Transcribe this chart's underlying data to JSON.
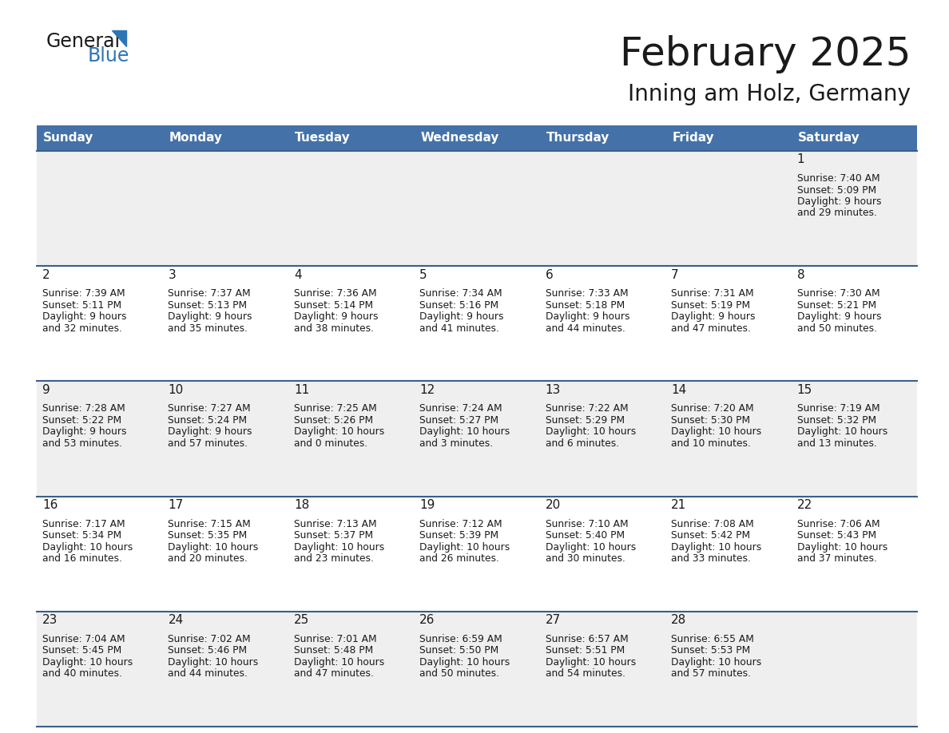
{
  "title": "February 2025",
  "subtitle": "Inning am Holz, Germany",
  "header_bg": "#4472A8",
  "header_text": "#FFFFFF",
  "row_bg_light": "#EFEFEF",
  "row_bg_white": "#FFFFFF",
  "text_color": "#1a1a1a",
  "divider_color": "#3A5F8A",
  "day_names": [
    "Sunday",
    "Monday",
    "Tuesday",
    "Wednesday",
    "Thursday",
    "Friday",
    "Saturday"
  ],
  "calendar": [
    [
      null,
      null,
      null,
      null,
      null,
      null,
      {
        "day": "1",
        "sunrise": "7:40 AM",
        "sunset": "5:09 PM",
        "daylight": "9 hours",
        "daylight2": "and 29 minutes."
      }
    ],
    [
      {
        "day": "2",
        "sunrise": "7:39 AM",
        "sunset": "5:11 PM",
        "daylight": "9 hours",
        "daylight2": "and 32 minutes."
      },
      {
        "day": "3",
        "sunrise": "7:37 AM",
        "sunset": "5:13 PM",
        "daylight": "9 hours",
        "daylight2": "and 35 minutes."
      },
      {
        "day": "4",
        "sunrise": "7:36 AM",
        "sunset": "5:14 PM",
        "daylight": "9 hours",
        "daylight2": "and 38 minutes."
      },
      {
        "day": "5",
        "sunrise": "7:34 AM",
        "sunset": "5:16 PM",
        "daylight": "9 hours",
        "daylight2": "and 41 minutes."
      },
      {
        "day": "6",
        "sunrise": "7:33 AM",
        "sunset": "5:18 PM",
        "daylight": "9 hours",
        "daylight2": "and 44 minutes."
      },
      {
        "day": "7",
        "sunrise": "7:31 AM",
        "sunset": "5:19 PM",
        "daylight": "9 hours",
        "daylight2": "and 47 minutes."
      },
      {
        "day": "8",
        "sunrise": "7:30 AM",
        "sunset": "5:21 PM",
        "daylight": "9 hours",
        "daylight2": "and 50 minutes."
      }
    ],
    [
      {
        "day": "9",
        "sunrise": "7:28 AM",
        "sunset": "5:22 PM",
        "daylight": "9 hours",
        "daylight2": "and 53 minutes."
      },
      {
        "day": "10",
        "sunrise": "7:27 AM",
        "sunset": "5:24 PM",
        "daylight": "9 hours",
        "daylight2": "and 57 minutes."
      },
      {
        "day": "11",
        "sunrise": "7:25 AM",
        "sunset": "5:26 PM",
        "daylight": "10 hours",
        "daylight2": "and 0 minutes."
      },
      {
        "day": "12",
        "sunrise": "7:24 AM",
        "sunset": "5:27 PM",
        "daylight": "10 hours",
        "daylight2": "and 3 minutes."
      },
      {
        "day": "13",
        "sunrise": "7:22 AM",
        "sunset": "5:29 PM",
        "daylight": "10 hours",
        "daylight2": "and 6 minutes."
      },
      {
        "day": "14",
        "sunrise": "7:20 AM",
        "sunset": "5:30 PM",
        "daylight": "10 hours",
        "daylight2": "and 10 minutes."
      },
      {
        "day": "15",
        "sunrise": "7:19 AM",
        "sunset": "5:32 PM",
        "daylight": "10 hours",
        "daylight2": "and 13 minutes."
      }
    ],
    [
      {
        "day": "16",
        "sunrise": "7:17 AM",
        "sunset": "5:34 PM",
        "daylight": "10 hours",
        "daylight2": "and 16 minutes."
      },
      {
        "day": "17",
        "sunrise": "7:15 AM",
        "sunset": "5:35 PM",
        "daylight": "10 hours",
        "daylight2": "and 20 minutes."
      },
      {
        "day": "18",
        "sunrise": "7:13 AM",
        "sunset": "5:37 PM",
        "daylight": "10 hours",
        "daylight2": "and 23 minutes."
      },
      {
        "day": "19",
        "sunrise": "7:12 AM",
        "sunset": "5:39 PM",
        "daylight": "10 hours",
        "daylight2": "and 26 minutes."
      },
      {
        "day": "20",
        "sunrise": "7:10 AM",
        "sunset": "5:40 PM",
        "daylight": "10 hours",
        "daylight2": "and 30 minutes."
      },
      {
        "day": "21",
        "sunrise": "7:08 AM",
        "sunset": "5:42 PM",
        "daylight": "10 hours",
        "daylight2": "and 33 minutes."
      },
      {
        "day": "22",
        "sunrise": "7:06 AM",
        "sunset": "5:43 PM",
        "daylight": "10 hours",
        "daylight2": "and 37 minutes."
      }
    ],
    [
      {
        "day": "23",
        "sunrise": "7:04 AM",
        "sunset": "5:45 PM",
        "daylight": "10 hours",
        "daylight2": "and 40 minutes."
      },
      {
        "day": "24",
        "sunrise": "7:02 AM",
        "sunset": "5:46 PM",
        "daylight": "10 hours",
        "daylight2": "and 44 minutes."
      },
      {
        "day": "25",
        "sunrise": "7:01 AM",
        "sunset": "5:48 PM",
        "daylight": "10 hours",
        "daylight2": "and 47 minutes."
      },
      {
        "day": "26",
        "sunrise": "6:59 AM",
        "sunset": "5:50 PM",
        "daylight": "10 hours",
        "daylight2": "and 50 minutes."
      },
      {
        "day": "27",
        "sunrise": "6:57 AM",
        "sunset": "5:51 PM",
        "daylight": "10 hours",
        "daylight2": "and 54 minutes."
      },
      {
        "day": "28",
        "sunrise": "6:55 AM",
        "sunset": "5:53 PM",
        "daylight": "10 hours",
        "daylight2": "and 57 minutes."
      },
      null
    ]
  ],
  "logo_general_color": "#1a1a1a",
  "logo_blue_color": "#2E75B6",
  "logo_triangle_color": "#2E75B6"
}
